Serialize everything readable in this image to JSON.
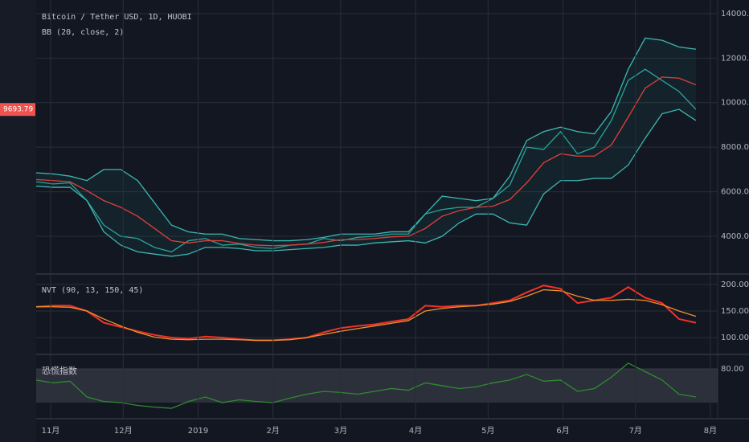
{
  "chart_data": [
    {
      "type": "line",
      "title": "Bitcoin / Tether USD, 1D, HUOBI",
      "subtitle": "BB (20, close, 2)",
      "x": [
        -6,
        1,
        8,
        15,
        22,
        29,
        36,
        43,
        50,
        57,
        64,
        71,
        78,
        85,
        92,
        99,
        106,
        113,
        120,
        127,
        134,
        141,
        148,
        155,
        162,
        169,
        176,
        183,
        190,
        197,
        204,
        211,
        218,
        225,
        232,
        239,
        246,
        253,
        260,
        267
      ],
      "xlim": [
        -6,
        276
      ],
      "ylim": [
        2340,
        14610
      ],
      "yticks": [
        {
          "value": 4000,
          "label": "4000.00"
        },
        {
          "value": 6000,
          "label": "6000.00"
        },
        {
          "value": 8000,
          "label": "8000.00"
        },
        {
          "value": 10000,
          "label": "10000.00"
        },
        {
          "value": 12000,
          "label": "12000.00"
        },
        {
          "value": 14000,
          "label": "14000.00"
        }
      ],
      "grid": true,
      "last_price": 9693.79,
      "last_price_color": "#ef5350",
      "band_fill": "#26a69a",
      "series": [
        {
          "name": "close",
          "color": "#26a69a",
          "values": [
            6450,
            6350,
            6400,
            5600,
            4500,
            4000,
            3900,
            3500,
            3300,
            3800,
            3900,
            3600,
            3650,
            3500,
            3450,
            3600,
            3650,
            3900,
            3800,
            3950,
            4000,
            4100,
            4100,
            5000,
            5200,
            5300,
            5300,
            5700,
            6300,
            8000,
            7900,
            8700,
            7700,
            8000,
            9200,
            11000,
            11500,
            11000,
            10500,
            9700
          ]
        },
        {
          "name": "upper",
          "color": "#3cb6b0",
          "values": [
            6850,
            6800,
            6700,
            6500,
            7000,
            7000,
            6500,
            5500,
            4500,
            4200,
            4100,
            4100,
            3900,
            3850,
            3800,
            3800,
            3850,
            3950,
            4100,
            4100,
            4100,
            4200,
            4200,
            5000,
            5800,
            5700,
            5600,
            5700,
            6700,
            8300,
            8700,
            8900,
            8700,
            8600,
            9600,
            11500,
            12900,
            12800,
            12500,
            12400
          ]
        },
        {
          "name": "basis",
          "color": "#e0403a",
          "values": [
            6550,
            6500,
            6450,
            6050,
            5600,
            5300,
            4900,
            4350,
            3800,
            3700,
            3800,
            3800,
            3680,
            3600,
            3575,
            3600,
            3650,
            3725,
            3850,
            3850,
            3900,
            3975,
            4000,
            4350,
            4900,
            5150,
            5300,
            5350,
            5650,
            6400,
            7300,
            7700,
            7600,
            7600,
            8100,
            9350,
            10650,
            11150,
            11100,
            10800
          ]
        },
        {
          "name": "lower",
          "color": "#3cb6b0",
          "values": [
            6250,
            6200,
            6200,
            5600,
            4200,
            3600,
            3300,
            3200,
            3100,
            3200,
            3500,
            3500,
            3450,
            3350,
            3350,
            3400,
            3450,
            3500,
            3600,
            3600,
            3700,
            3750,
            3800,
            3700,
            4000,
            4600,
            5000,
            5000,
            4600,
            4500,
            5900,
            6500,
            6500,
            6600,
            6600,
            7200,
            8400,
            9500,
            9700,
            9200
          ]
        }
      ]
    },
    {
      "type": "line",
      "title": "NVT (90, 13, 150, 45)",
      "x": [
        -6,
        1,
        8,
        15,
        22,
        29,
        36,
        43,
        50,
        57,
        64,
        71,
        78,
        85,
        92,
        99,
        106,
        113,
        120,
        127,
        134,
        141,
        148,
        155,
        162,
        169,
        176,
        183,
        190,
        197,
        204,
        211,
        218,
        225,
        232,
        239,
        246,
        253,
        260,
        267
      ],
      "xlim": [
        -6,
        276
      ],
      "ylim": [
        70,
        218
      ],
      "yticks": [
        {
          "value": 100,
          "label": "100.00"
        },
        {
          "value": 150,
          "label": "150.00"
        },
        {
          "value": 200,
          "label": "200.00"
        }
      ],
      "series": [
        {
          "name": "NVT",
          "color": "#f0322a",
          "values": [
            158,
            160,
            160,
            150,
            128,
            120,
            112,
            105,
            100,
            98,
            102,
            100,
            97,
            95,
            95,
            97,
            100,
            110,
            118,
            122,
            125,
            130,
            135,
            160,
            158,
            160,
            160,
            165,
            170,
            185,
            198,
            192,
            165,
            170,
            175,
            195,
            175,
            165,
            135,
            128
          ]
        },
        {
          "name": "MA",
          "color": "#f0912a",
          "values": [
            158,
            158,
            157,
            150,
            135,
            122,
            110,
            101,
            97,
            96,
            97,
            97,
            96,
            95,
            95,
            96,
            100,
            106,
            112,
            117,
            122,
            127,
            132,
            150,
            155,
            158,
            160,
            163,
            168,
            178,
            190,
            188,
            178,
            170,
            170,
            172,
            170,
            162,
            150,
            140
          ]
        }
      ]
    },
    {
      "type": "line",
      "title": "恐慌指数",
      "x": [
        -6,
        1,
        8,
        15,
        22,
        29,
        36,
        43,
        50,
        57,
        64,
        71,
        78,
        85,
        92,
        99,
        106,
        113,
        120,
        127,
        134,
        141,
        148,
        155,
        162,
        169,
        176,
        183,
        190,
        197,
        204,
        211,
        218,
        225,
        232,
        239,
        246,
        253,
        260,
        267
      ],
      "xlim": [
        -6,
        276
      ],
      "ylim": [
        -7,
        104
      ],
      "band": [
        20,
        80
      ],
      "yticks": [
        {
          "value": 80,
          "label": "80.00"
        }
      ],
      "xticks": [
        {
          "value": 0,
          "label": "11月"
        },
        {
          "value": 30,
          "label": "12月"
        },
        {
          "value": 61,
          "label": "2019"
        },
        {
          "value": 92,
          "label": "2月"
        },
        {
          "value": 120,
          "label": "3月"
        },
        {
          "value": 151,
          "label": "4月"
        },
        {
          "value": 181,
          "label": "5月"
        },
        {
          "value": 212,
          "label": "6月"
        },
        {
          "value": 242,
          "label": "7月"
        },
        {
          "value": 273,
          "label": "8月"
        }
      ],
      "series": [
        {
          "name": "index",
          "color": "#2e8b2e",
          "values": [
            60,
            55,
            58,
            30,
            22,
            20,
            15,
            12,
            10,
            22,
            30,
            20,
            25,
            22,
            20,
            28,
            35,
            40,
            38,
            35,
            40,
            45,
            42,
            55,
            50,
            45,
            48,
            55,
            60,
            70,
            58,
            60,
            40,
            45,
            65,
            90,
            75,
            60,
            35,
            30
          ]
        }
      ]
    }
  ]
}
